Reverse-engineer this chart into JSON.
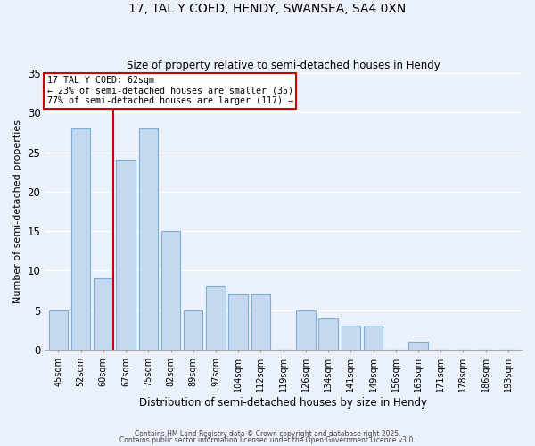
{
  "title1": "17, TAL Y COED, HENDY, SWANSEA, SA4 0XN",
  "title2": "Size of property relative to semi-detached houses in Hendy",
  "xlabel": "Distribution of semi-detached houses by size in Hendy",
  "ylabel": "Number of semi-detached properties",
  "bar_labels": [
    "45sqm",
    "52sqm",
    "60sqm",
    "67sqm",
    "75sqm",
    "82sqm",
    "89sqm",
    "97sqm",
    "104sqm",
    "112sqm",
    "119sqm",
    "126sqm",
    "134sqm",
    "141sqm",
    "149sqm",
    "156sqm",
    "163sqm",
    "171sqm",
    "178sqm",
    "186sqm",
    "193sqm"
  ],
  "bar_values": [
    5,
    28,
    9,
    24,
    28,
    15,
    5,
    8,
    7,
    7,
    0,
    5,
    4,
    3,
    3,
    0,
    1,
    0,
    0,
    0,
    0
  ],
  "bar_color": "#c5d8f0",
  "bar_edge_color": "#7bafd4",
  "annotation_title": "17 TAL Y COED: 62sqm",
  "annotation_line1": "← 23% of semi-detached houses are smaller (35)",
  "annotation_line2": "77% of semi-detached houses are larger (117) →",
  "annotation_box_color": "#ffffff",
  "annotation_box_edge": "#cc0000",
  "vline_color": "#cc0000",
  "ylim": [
    0,
    35
  ],
  "yticks": [
    0,
    5,
    10,
    15,
    20,
    25,
    30,
    35
  ],
  "bg_color": "#eaf1fb",
  "grid_color": "#ffffff",
  "footer1": "Contains HM Land Registry data © Crown copyright and database right 2025.",
  "footer2": "Contains public sector information licensed under the Open Government Licence v3.0."
}
